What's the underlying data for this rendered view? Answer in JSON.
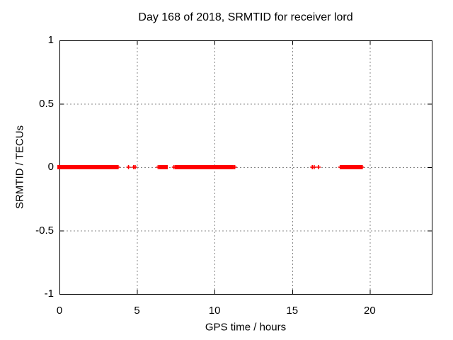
{
  "chart_data": {
    "type": "scatter",
    "title": "Day 168 of 2018, SRMTID for receiver lord",
    "xlabel": "GPS time / hours",
    "ylabel": "SRMTID / TECUs",
    "xlim": [
      0,
      24
    ],
    "ylim": [
      -1,
      1
    ],
    "xticks": [
      {
        "value": 0,
        "label": "0"
      },
      {
        "value": 5,
        "label": "5"
      },
      {
        "value": 10,
        "label": "10"
      },
      {
        "value": 15,
        "label": "15"
      },
      {
        "value": 20,
        "label": "20"
      }
    ],
    "yticks": [
      {
        "value": 1,
        "label": "1"
      },
      {
        "value": 0.5,
        "label": "0.5"
      },
      {
        "value": 0,
        "label": "0"
      },
      {
        "value": -0.5,
        "label": "-0.5"
      },
      {
        "value": -1,
        "label": "-1"
      }
    ],
    "grid": true,
    "legend": "none",
    "marker": "plus",
    "marker_color": "#ff0000",
    "axis_color": "#000000",
    "grid_color": "#888888",
    "series": [
      {
        "name": "SRMTID",
        "y_value": 0,
        "dense_runs_hours": [
          [
            0.0,
            0.92
          ],
          [
            1.05,
            1.91
          ],
          [
            2.03,
            3.63
          ],
          [
            6.55,
            6.85
          ],
          [
            7.58,
            7.97
          ],
          [
            8.05,
            8.97
          ],
          [
            9.05,
            11.12
          ],
          [
            18.27,
            19.12
          ],
          [
            19.2,
            19.42
          ]
        ],
        "isolated_points_hours": [
          3.78,
          4.45,
          4.78,
          4.88,
          6.36,
          6.46,
          7.38,
          7.47,
          11.3,
          16.3,
          16.42,
          16.7,
          18.1,
          19.5
        ]
      }
    ]
  }
}
